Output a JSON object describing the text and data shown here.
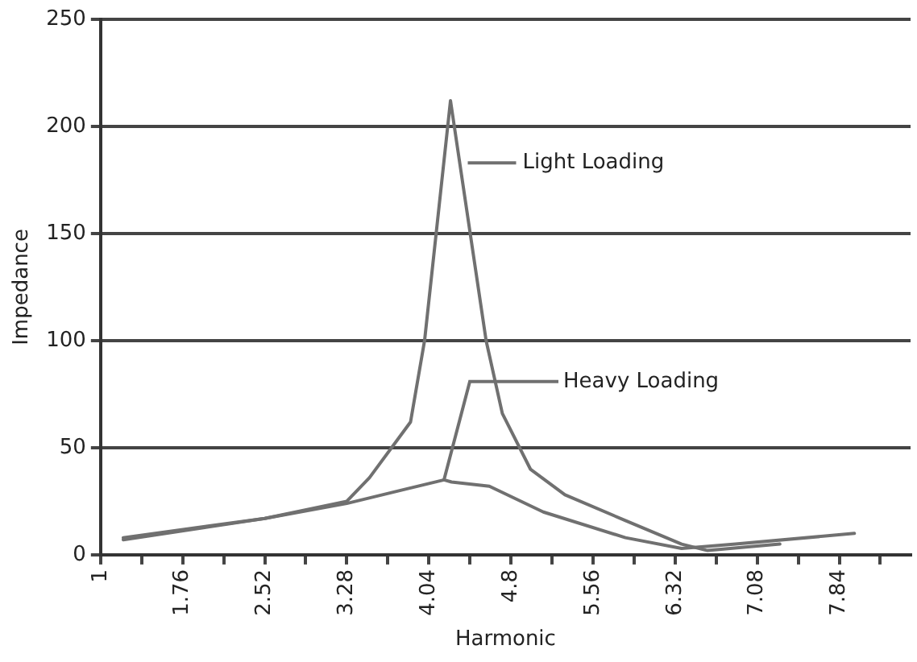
{
  "chart_data": {
    "type": "line",
    "xlabel": "Harmonic",
    "ylabel": "Impedance",
    "xlim": [
      1,
      8.5
    ],
    "xticks": [
      1,
      {
        "value": 1.38,
        "label": null
      },
      1.76,
      {
        "value": 2.14,
        "label": null
      },
      2.52,
      {
        "value": 2.9,
        "label": null
      },
      3.28,
      {
        "value": 3.66,
        "label": null
      },
      4.04,
      {
        "value": 4.42,
        "label": null
      },
      4.8,
      {
        "value": 5.18,
        "label": null
      },
      5.56,
      {
        "value": 5.94,
        "label": null
      },
      6.32,
      {
        "value": 6.7,
        "label": null
      },
      7.08,
      {
        "value": 7.46,
        "label": null
      },
      7.84,
      {
        "value": 8.22,
        "label": null
      }
    ],
    "ylim": [
      0,
      250
    ],
    "yticks": [
      0,
      50,
      100,
      150,
      200,
      250
    ],
    "grid": "y",
    "legend": false,
    "marker": "none",
    "line_style": "solid",
    "series": [
      {
        "color": "#707070",
        "x": [
          1.21,
          2.52,
          3.28,
          3.49,
          3.87,
          4.0,
          4.24,
          4.57,
          4.72,
          4.98,
          5.3,
          5.86,
          6.38,
          6.62,
          7.29
        ],
        "values": [
          8,
          17,
          25,
          36,
          62,
          100,
          212,
          100,
          66,
          40,
          28,
          16,
          5,
          2,
          5
        ]
      },
      {
        "color": "#707070",
        "x": [
          1.21,
          2.52,
          3.28,
          4.18,
          4.25,
          4.6,
          5.1,
          5.86,
          6.38,
          6.88,
          7.98
        ],
        "values": [
          7,
          17,
          24,
          35,
          34,
          32,
          20,
          8,
          3,
          5,
          10
        ]
      }
    ],
    "annotations": [
      {
        "text": "Light Loading",
        "x": 4.4,
        "y": 183
      },
      {
        "text": "Heavy Loading",
        "x": 4.18,
        "y": 35
      }
    ]
  }
}
